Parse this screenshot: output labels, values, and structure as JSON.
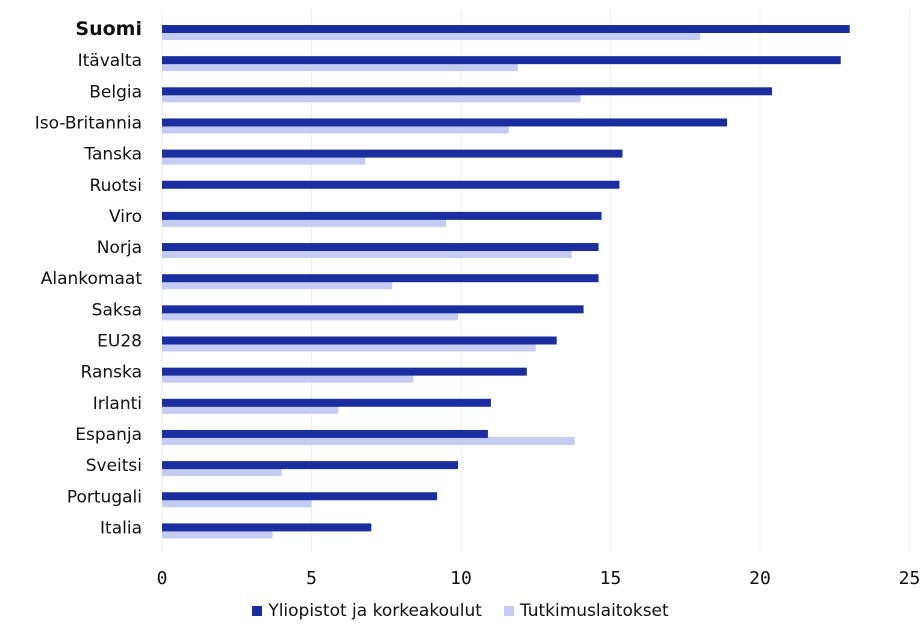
{
  "chart_data": {
    "type": "bar",
    "orientation": "horizontal",
    "categories": [
      "Suomi",
      "Itävalta",
      "Belgia",
      "Iso-Britannia",
      "Tanska",
      "Ruotsi",
      "Viro",
      "Norja",
      "Alankomaat",
      "Saksa",
      "EU28",
      "Ranska",
      "Irlanti",
      "Espanja",
      "Sveitsi",
      "Portugali",
      "Italia"
    ],
    "highlight_category": "Suomi",
    "series": [
      {
        "name": "Yliopistot ja korkeakoulut",
        "color": "#1a2ea0",
        "values": [
          23.0,
          22.7,
          20.4,
          18.9,
          15.4,
          15.3,
          14.7,
          14.6,
          14.6,
          14.1,
          13.2,
          12.2,
          11.0,
          10.9,
          9.9,
          9.2,
          7.0
        ]
      },
      {
        "name": "Tutkimuslaitokset",
        "color": "#c4ccf4",
        "values": [
          18.0,
          11.9,
          14.0,
          11.6,
          6.8,
          null,
          9.5,
          13.7,
          7.7,
          9.9,
          12.5,
          8.4,
          5.9,
          13.8,
          4.0,
          5.0,
          3.7
        ]
      }
    ],
    "xlim": [
      0,
      25
    ],
    "xticks": [
      "0",
      "5",
      "10",
      "15",
      "20",
      "25"
    ],
    "grid": true,
    "legend_position": "bottom-center"
  }
}
